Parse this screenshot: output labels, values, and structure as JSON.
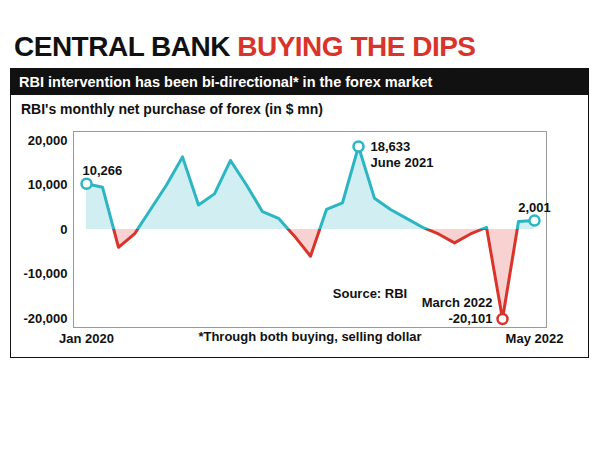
{
  "chart_data": {
    "type": "line",
    "title": "CENTRAL BANK BUYING THE DIPS",
    "subtitle": "RBI intervention has been bi-directional* in the forex market",
    "ylabel": "RBI's monthly net purchase of forex (in $ mn)",
    "x": [
      "2020-01",
      "2020-02",
      "2020-03",
      "2020-04",
      "2020-05",
      "2020-06",
      "2020-07",
      "2020-08",
      "2020-09",
      "2020-10",
      "2020-11",
      "2020-12",
      "2021-01",
      "2021-02",
      "2021-03",
      "2021-04",
      "2021-05",
      "2021-06",
      "2021-07",
      "2021-08",
      "2021-09",
      "2021-10",
      "2021-11",
      "2021-12",
      "2022-01",
      "2022-02",
      "2022-03",
      "2022-04",
      "2022-05"
    ],
    "values": [
      10266,
      9500,
      -4000,
      -1000,
      4500,
      10000,
      16300,
      5500,
      8000,
      15500,
      10000,
      4000,
      2500,
      -1500,
      -6000,
      4500,
      6000,
      18633,
      7000,
      4500,
      2500,
      500,
      -1000,
      -3000,
      -1000,
      500,
      -20101,
      1800,
      2001
    ],
    "value_labels": [
      "10,266",
      null,
      null,
      null,
      null,
      null,
      null,
      null,
      null,
      null,
      null,
      null,
      null,
      null,
      null,
      null,
      null,
      "18,633",
      null,
      null,
      null,
      null,
      null,
      null,
      null,
      null,
      "-20,101",
      null,
      "2,001"
    ],
    "data_labels": true,
    "annotations": [
      {
        "text": "June 2021",
        "x": "2021-06"
      },
      {
        "text": "March 2022",
        "x": "2022-03"
      }
    ],
    "source": "Source: RBI",
    "note": "*Through both buying, selling dollar",
    "colors": [
      "#2cb5c2",
      "#d9342b"
    ],
    "xticks": [
      {
        "value": "2020-01",
        "label": "Jan 2020"
      },
      {
        "value": "2022-05",
        "label": "May 2022"
      }
    ],
    "ylim": [
      -22000,
      22000
    ],
    "yticks": [
      {
        "value": -20000,
        "label": "-20,000"
      },
      {
        "value": -10000,
        "label": "-10,000"
      },
      0,
      {
        "value": 10000,
        "label": "10,000"
      },
      {
        "value": 20000,
        "label": "20,000"
      }
    ],
    "grid": false
  }
}
